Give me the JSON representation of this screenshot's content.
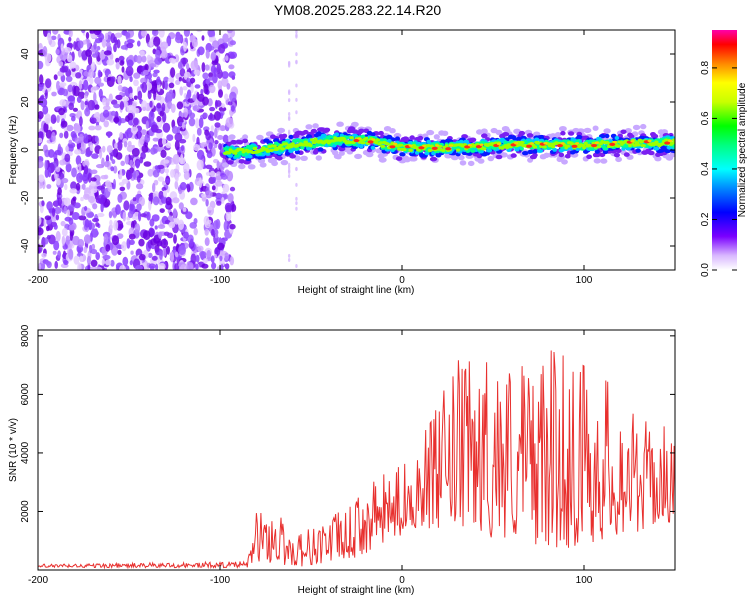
{
  "title": "YM08.2025.283.22.14.R20",
  "chart_data": [
    {
      "type": "heatmap",
      "panel": "spectrogram",
      "title": "YM08.2025.283.22.14.R20",
      "xlabel": "Height of straight line (km)",
      "ylabel": "Frequency (Hz)",
      "xlim": [
        -200,
        150
      ],
      "ylim": [
        -50,
        50
      ],
      "xticks": [
        -200,
        -100,
        0,
        100
      ],
      "yticks": [
        -40,
        -20,
        0,
        20,
        40
      ],
      "noise_region_x": [
        -200,
        -92
      ],
      "signal_band": {
        "start_x": -97,
        "end_x": 150,
        "center_frequency": [
          {
            "x": -95,
            "f": -1
          },
          {
            "x": -80,
            "f": 0
          },
          {
            "x": -60,
            "f": 2
          },
          {
            "x": -40,
            "f": 4
          },
          {
            "x": -20,
            "f": 4
          },
          {
            "x": 0,
            "f": 1
          },
          {
            "x": 30,
            "f": 1
          },
          {
            "x": 60,
            "f": 2
          },
          {
            "x": 100,
            "f": 2
          },
          {
            "x": 130,
            "f": 3
          },
          {
            "x": 150,
            "f": 3
          }
        ]
      },
      "colorbar": {
        "label": "Normalized spectral amplitude",
        "range": [
          0.0,
          0.95
        ],
        "ticks": [
          0.0,
          0.2,
          0.4,
          0.6,
          0.8
        ],
        "tick_labels": [
          "0.0",
          "0.2",
          "0.4",
          "0.6",
          "0.8"
        ]
      }
    },
    {
      "type": "line",
      "panel": "snr",
      "xlabel": "Height of straight line (km)",
      "ylabel": "SNR (10 * v/v)",
      "xlim": [
        -200,
        150
      ],
      "ylim": [
        0,
        8200
      ],
      "xticks": [
        -200,
        -100,
        0,
        100
      ],
      "yticks": [
        2000,
        4000,
        6000,
        8000
      ],
      "color": "#e8302e",
      "envelope": [
        {
          "x": -200,
          "min": 80,
          "max": 200
        },
        {
          "x": -120,
          "min": 80,
          "max": 260
        },
        {
          "x": -85,
          "min": 80,
          "max": 300
        },
        {
          "x": -80,
          "min": 300,
          "max": 2000
        },
        {
          "x": -70,
          "min": 200,
          "max": 2200
        },
        {
          "x": -60,
          "min": 100,
          "max": 1300
        },
        {
          "x": -50,
          "min": 150,
          "max": 1500
        },
        {
          "x": -40,
          "min": 250,
          "max": 1900
        },
        {
          "x": -30,
          "min": 300,
          "max": 2100
        },
        {
          "x": -15,
          "min": 700,
          "max": 3100
        },
        {
          "x": 0,
          "min": 1200,
          "max": 3600
        },
        {
          "x": 10,
          "min": 1500,
          "max": 4600
        },
        {
          "x": 20,
          "min": 1300,
          "max": 5700
        },
        {
          "x": 30,
          "min": 1400,
          "max": 7200
        },
        {
          "x": 50,
          "min": 1100,
          "max": 7400
        },
        {
          "x": 70,
          "min": 900,
          "max": 7300
        },
        {
          "x": 90,
          "min": 700,
          "max": 7700
        },
        {
          "x": 110,
          "min": 1000,
          "max": 6900
        },
        {
          "x": 130,
          "min": 1300,
          "max": 5200
        },
        {
          "x": 150,
          "min": 1700,
          "max": 4800
        }
      ]
    }
  ]
}
